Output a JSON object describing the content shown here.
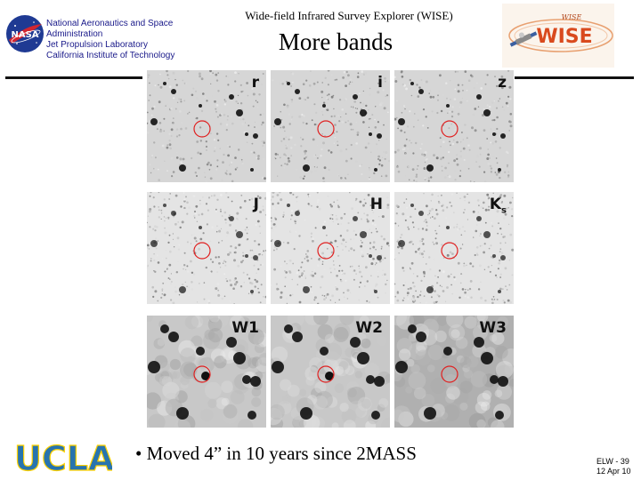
{
  "header": {
    "org_lines": [
      "National Aeronautics and Space",
      "Administration",
      "Jet Propulsion Laboratory",
      "California Institute of Technology"
    ],
    "mission_title": "Wide-field Infrared Survey Explorer (WISE)",
    "slide_title": "More bands",
    "nasa_logo_text": "NASA",
    "wise_logo_text": "WISE",
    "wise_logo_signature": "WISE"
  },
  "panels": [
    {
      "label": "r",
      "label_sub": "",
      "style": "optical"
    },
    {
      "label": "i",
      "label_sub": "",
      "style": "optical"
    },
    {
      "label": "z",
      "label_sub": "",
      "style": "optical"
    },
    {
      "label": "J",
      "label_sub": "",
      "style": "nir"
    },
    {
      "label": "H",
      "label_sub": "",
      "style": "nir"
    },
    {
      "label": "K",
      "label_sub": "s",
      "style": "nir"
    },
    {
      "label": "W1",
      "label_sub": "",
      "style": "wise"
    },
    {
      "label": "W2",
      "label_sub": "",
      "style": "wise"
    },
    {
      "label": "W3",
      "label_sub": "",
      "style": "wise3"
    }
  ],
  "bullet": "•  Moved 4” in 10 years since 2MASS",
  "footer": {
    "line1": "ELW - 39",
    "line2": "12 Apr 10"
  },
  "ucla_text": "UCLA",
  "colors": {
    "nasa_blue": "#1f3a93",
    "nasa_red": "#d22630",
    "ucla_blue": "#2774ae",
    "ucla_gold": "#ffd100",
    "circle_red": "#e02020",
    "org_text": "#1a1a8a"
  }
}
